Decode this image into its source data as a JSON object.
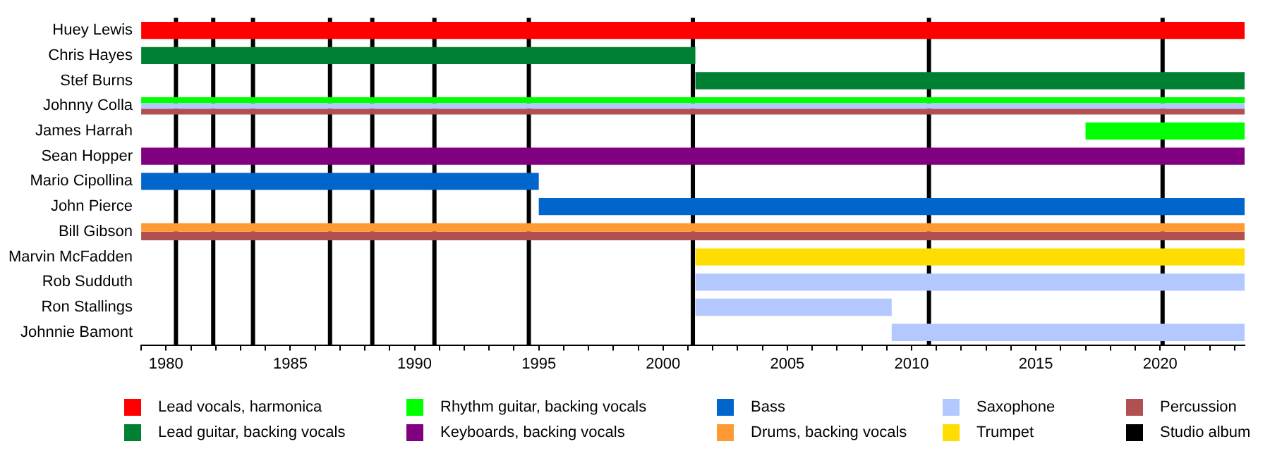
{
  "chart_data": {
    "type": "bar",
    "orientation": "horizontal",
    "categories": [
      "Huey Lewis",
      "Chris Hayes",
      "Stef Burns",
      "Johnny Colla",
      "James Harrah",
      "Sean Hopper",
      "Mario Cipollina",
      "John Pierce",
      "Bill Gibson",
      "Marvin McFadden",
      "Rob Sudduth",
      "Ron Stallings",
      "Johnnie Bamont"
    ],
    "series": [
      {
        "name": "Lead vocals, harmonica",
        "color": "#ff0000",
        "base": [
          1979,
          null,
          null,
          null,
          null,
          null,
          null,
          null,
          null,
          null,
          null,
          null,
          null
        ],
        "values": [
          44.4,
          null,
          null,
          null,
          null,
          null,
          null,
          null,
          null,
          null,
          null,
          null,
          null
        ]
      },
      {
        "name": "Lead guitar, backing vocals",
        "color": "#008033",
        "base": [
          null,
          1979,
          2001.3,
          null,
          null,
          null,
          null,
          null,
          null,
          null,
          null,
          null,
          null
        ],
        "values": [
          null,
          22.3,
          22.1,
          null,
          null,
          null,
          null,
          null,
          null,
          null,
          null,
          null,
          null
        ]
      },
      {
        "name": "Rhythm guitar, backing vocals",
        "color": "#00ff00",
        "base": [
          null,
          null,
          null,
          1979,
          2017,
          null,
          null,
          null,
          null,
          null,
          null,
          null,
          null
        ],
        "values": [
          null,
          null,
          null,
          44.4,
          6.4,
          null,
          null,
          null,
          null,
          null,
          null,
          null,
          null
        ]
      },
      {
        "name": "Keyboards, backing vocals",
        "color": "#800080",
        "base": [
          null,
          null,
          null,
          null,
          null,
          1979,
          null,
          null,
          null,
          null,
          null,
          null,
          null
        ],
        "values": [
          null,
          null,
          null,
          null,
          null,
          44.4,
          null,
          null,
          null,
          null,
          null,
          null,
          null
        ]
      },
      {
        "name": "Bass",
        "color": "#0066cc",
        "base": [
          null,
          null,
          null,
          null,
          null,
          null,
          1979,
          1995,
          null,
          null,
          null,
          null,
          null
        ],
        "values": [
          null,
          null,
          null,
          null,
          null,
          null,
          16,
          28.4,
          null,
          null,
          null,
          null,
          null
        ]
      },
      {
        "name": "Drums, backing vocals",
        "color": "#ff9933",
        "base": [
          null,
          null,
          null,
          null,
          null,
          null,
          null,
          null,
          1979,
          null,
          null,
          null,
          null
        ],
        "values": [
          null,
          null,
          null,
          null,
          null,
          null,
          null,
          null,
          44.4,
          null,
          null,
          null,
          null
        ]
      },
      {
        "name": "Saxophone",
        "color": "#b3c8ff",
        "base": [
          null,
          null,
          null,
          1979,
          null,
          null,
          null,
          null,
          null,
          null,
          2001.3,
          2001.3,
          2009.2
        ],
        "values": [
          null,
          null,
          null,
          44.4,
          null,
          null,
          null,
          null,
          null,
          null,
          22.1,
          7.9,
          14.2
        ]
      },
      {
        "name": "Trumpet",
        "color": "#ffdd00",
        "base": [
          null,
          null,
          null,
          null,
          null,
          null,
          null,
          null,
          null,
          2001.3,
          null,
          null,
          null
        ],
        "values": [
          null,
          null,
          null,
          null,
          null,
          null,
          null,
          null,
          null,
          22.1,
          null,
          null,
          null
        ]
      },
      {
        "name": "Percussion",
        "color": "#b05050",
        "base": [
          null,
          null,
          null,
          1979,
          null,
          null,
          null,
          null,
          1979,
          null,
          null,
          null,
          null
        ],
        "values": [
          null,
          null,
          null,
          44.4,
          null,
          null,
          null,
          null,
          44.4,
          null,
          null,
          null,
          null
        ]
      }
    ],
    "xlim": [
      1979,
      2023.4
    ],
    "xticks": [
      {
        "value": 1979,
        "label": null
      },
      1980,
      {
        "value": 1981,
        "label": null
      },
      {
        "value": 1982,
        "label": null
      },
      {
        "value": 1983,
        "label": null
      },
      {
        "value": 1984,
        "label": null
      },
      1985,
      {
        "value": 1986,
        "label": null
      },
      {
        "value": 1987,
        "label": null
      },
      {
        "value": 1988,
        "label": null
      },
      {
        "value": 1989,
        "label": null
      },
      1990,
      {
        "value": 1991,
        "label": null
      },
      {
        "value": 1992,
        "label": null
      },
      {
        "value": 1993,
        "label": null
      },
      {
        "value": 1994,
        "label": null
      },
      1995,
      {
        "value": 1996,
        "label": null
      },
      {
        "value": 1997,
        "label": null
      },
      {
        "value": 1998,
        "label": null
      },
      {
        "value": 1999,
        "label": null
      },
      2000,
      {
        "value": 2001,
        "label": null
      },
      {
        "value": 2002,
        "label": null
      },
      {
        "value": 2003,
        "label": null
      },
      {
        "value": 2004,
        "label": null
      },
      2005,
      {
        "value": 2006,
        "label": null
      },
      {
        "value": 2007,
        "label": null
      },
      {
        "value": 2008,
        "label": null
      },
      {
        "value": 2009,
        "label": null
      },
      2010,
      {
        "value": 2011,
        "label": null
      },
      {
        "value": 2012,
        "label": null
      },
      {
        "value": 2013,
        "label": null
      },
      {
        "value": 2014,
        "label": null
      },
      2015,
      {
        "value": 2016,
        "label": null
      },
      {
        "value": 2017,
        "label": null
      },
      {
        "value": 2018,
        "label": null
      },
      {
        "value": 2019,
        "label": null
      },
      2020,
      {
        "value": 2021,
        "label": null
      },
      {
        "value": 2022,
        "label": null
      },
      {
        "value": 2023,
        "label": null
      }
    ],
    "ref_lines": [
      {
        "axis": "x",
        "value": 1980.4,
        "label": "Studio album",
        "color": "#000000"
      },
      {
        "axis": "x",
        "value": 1981.9,
        "color": "#000000"
      },
      {
        "axis": "x",
        "value": 1983.5,
        "color": "#000000"
      },
      {
        "axis": "x",
        "value": 1986.6,
        "color": "#000000"
      },
      {
        "axis": "x",
        "value": 1988.3,
        "color": "#000000"
      },
      {
        "axis": "x",
        "value": 1990.8,
        "color": "#000000"
      },
      {
        "axis": "x",
        "value": 1994.6,
        "color": "#000000"
      },
      {
        "axis": "x",
        "value": 2001.2,
        "color": "#000000"
      },
      {
        "axis": "x",
        "value": 2010.7,
        "color": "#000000"
      },
      {
        "axis": "x",
        "value": 2020.1,
        "color": "#000000"
      }
    ],
    "grid": false,
    "legend": "bottom"
  }
}
